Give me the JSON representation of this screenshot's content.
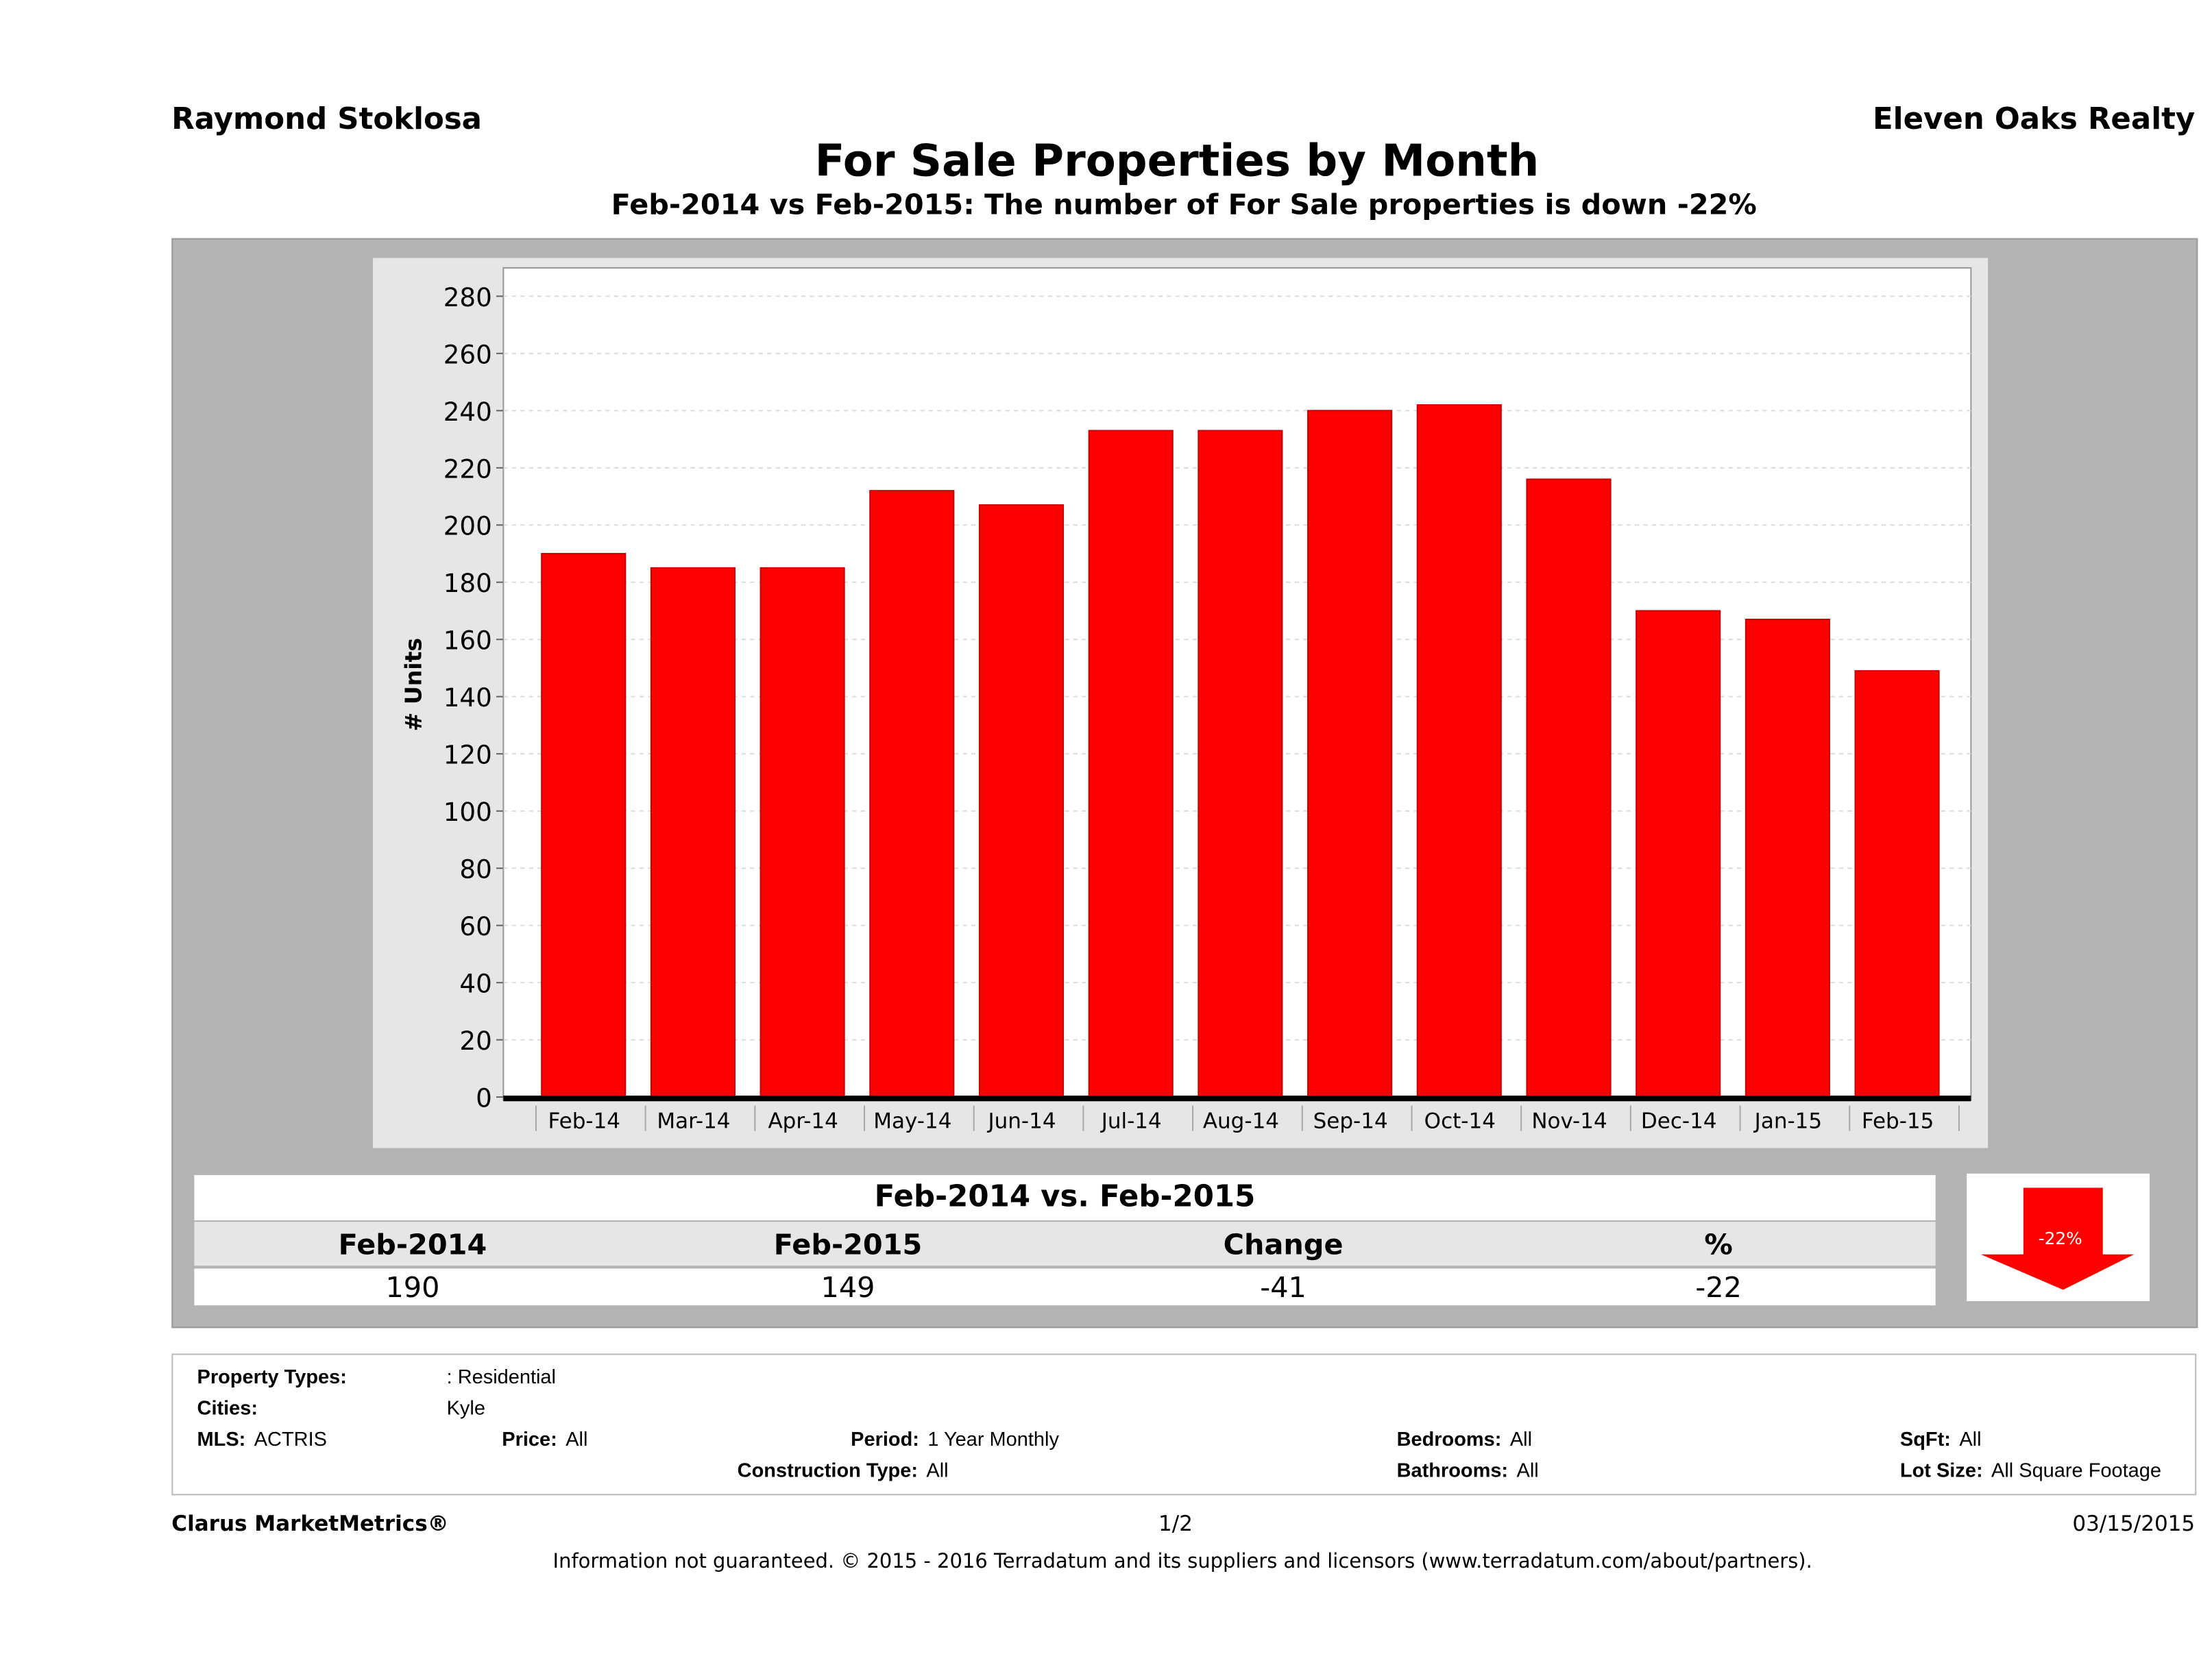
{
  "header": {
    "agent": "Raymond Stoklosa",
    "brokerage": "Eleven Oaks Realty",
    "title": "For Sale Properties by Month",
    "subtitle": "Feb-2014 vs Feb-2015: The number of For Sale  properties is down -22%"
  },
  "chart_data": {
    "type": "bar",
    "title": "For Sale Properties by Month",
    "xlabel": "",
    "ylabel": "# Units",
    "ylim": [
      0,
      280
    ],
    "yticks": [
      0,
      20,
      40,
      60,
      80,
      100,
      120,
      140,
      160,
      180,
      200,
      220,
      240,
      260,
      280
    ],
    "grid": true,
    "bar_color": "#ff0000",
    "categories": [
      "Feb-14",
      "Mar-14",
      "Apr-14",
      "May-14",
      "Jun-14",
      "Jul-14",
      "Aug-14",
      "Sep-14",
      "Oct-14",
      "Nov-14",
      "Dec-14",
      "Jan-15",
      "Feb-15"
    ],
    "values": [
      190,
      185,
      185,
      212,
      207,
      233,
      233,
      240,
      242,
      216,
      170,
      167,
      149
    ]
  },
  "summary": {
    "title": "Feb-2014 vs. Feb-2015",
    "headers": [
      "Feb-2014",
      "Feb-2015",
      "Change",
      "%"
    ],
    "values": [
      "190",
      "149",
      "-41",
      "-22"
    ],
    "arrow_label": "-22%",
    "arrow_direction": "down",
    "arrow_color": "#ff0000"
  },
  "filters": {
    "property_types_label": "Property Types:",
    "property_types": ": Residential",
    "cities_label": "Cities:",
    "cities": "Kyle",
    "mls_label": "MLS:",
    "mls": "ACTRIS",
    "price_label": "Price:",
    "price": "All",
    "period_label": "Period:",
    "period": "1 Year Monthly",
    "construction_label": "Construction Type:",
    "construction": "All",
    "bedrooms_label": "Bedrooms:",
    "bedrooms": "All",
    "bathrooms_label": "Bathrooms:",
    "bathrooms": "All",
    "sqft_label": "SqFt:",
    "sqft": "All",
    "lot_label": "Lot Size:",
    "lot": "All Square Footage"
  },
  "footer": {
    "brand": "Clarus MarketMetrics®",
    "page": "1/2",
    "date": "03/15/2015",
    "disclaimer": "Information not guaranteed. © 2015 - 2016 Terradatum and its suppliers and licensors (www.terradatum.com/about/partners)."
  }
}
